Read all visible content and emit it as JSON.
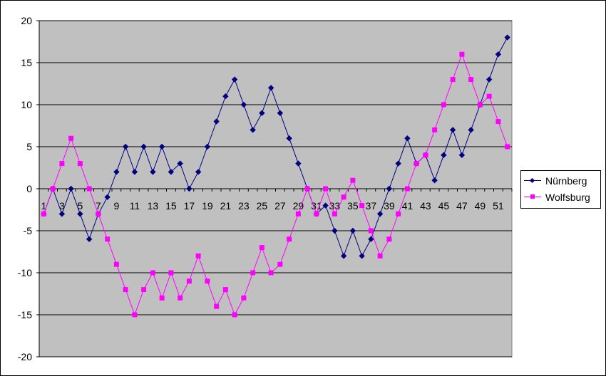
{
  "chart_data": {
    "type": "line",
    "title": "",
    "xlabel": "",
    "ylabel": "",
    "ylim": [
      -20,
      20
    ],
    "yticks": [
      20,
      15,
      10,
      5,
      0,
      -5,
      -10,
      -15,
      -20
    ],
    "xlim": [
      1,
      52
    ],
    "xtick_labels": [
      "1",
      "3",
      "5",
      "7",
      "9",
      "11",
      "13",
      "15",
      "17",
      "19",
      "21",
      "23",
      "25",
      "27",
      "29",
      "31",
      "33",
      "35",
      "37",
      "39",
      "41",
      "43",
      "45",
      "47",
      "49",
      "51"
    ],
    "x": [
      1,
      2,
      3,
      4,
      5,
      6,
      7,
      8,
      9,
      10,
      11,
      12,
      13,
      14,
      15,
      16,
      17,
      18,
      19,
      20,
      21,
      22,
      23,
      24,
      25,
      26,
      27,
      28,
      29,
      30,
      31,
      32,
      33,
      34,
      35,
      36,
      37,
      38,
      39,
      40,
      41,
      42,
      43,
      44,
      45,
      46,
      47,
      48,
      49,
      50,
      51,
      52
    ],
    "grid": true,
    "plot_background": "#c0c0c0",
    "legend_position": "right",
    "series": [
      {
        "name": "Nürnberg",
        "color": "#000080",
        "marker": "diamond",
        "values": [
          -3,
          0,
          -3,
          0,
          -3,
          -6,
          -3,
          -1,
          2,
          5,
          2,
          5,
          2,
          5,
          2,
          3,
          0,
          2,
          5,
          8,
          11,
          13,
          10,
          7,
          9,
          12,
          9,
          6,
          3,
          0,
          -3,
          -2,
          -5,
          -8,
          -5,
          -8,
          -6,
          -3,
          0,
          3,
          6,
          3,
          4,
          1,
          4,
          7,
          4,
          7,
          10,
          13,
          16,
          18
        ]
      },
      {
        "name": "Wolfsburg",
        "color": "#ff00ff",
        "marker": "square",
        "values": [
          -3,
          0,
          3,
          6,
          3,
          0,
          -3,
          -6,
          -9,
          -12,
          -15,
          -12,
          -10,
          -13,
          -10,
          -13,
          -11,
          -8,
          -11,
          -14,
          -12,
          -15,
          -13,
          -10,
          -7,
          -10,
          -9,
          -6,
          -3,
          0,
          -3,
          0,
          -3,
          -1,
          1,
          -2,
          -5,
          -8,
          -6,
          -3,
          0,
          3,
          4,
          7,
          10,
          13,
          16,
          13,
          10,
          11,
          8,
          5
        ]
      }
    ]
  }
}
